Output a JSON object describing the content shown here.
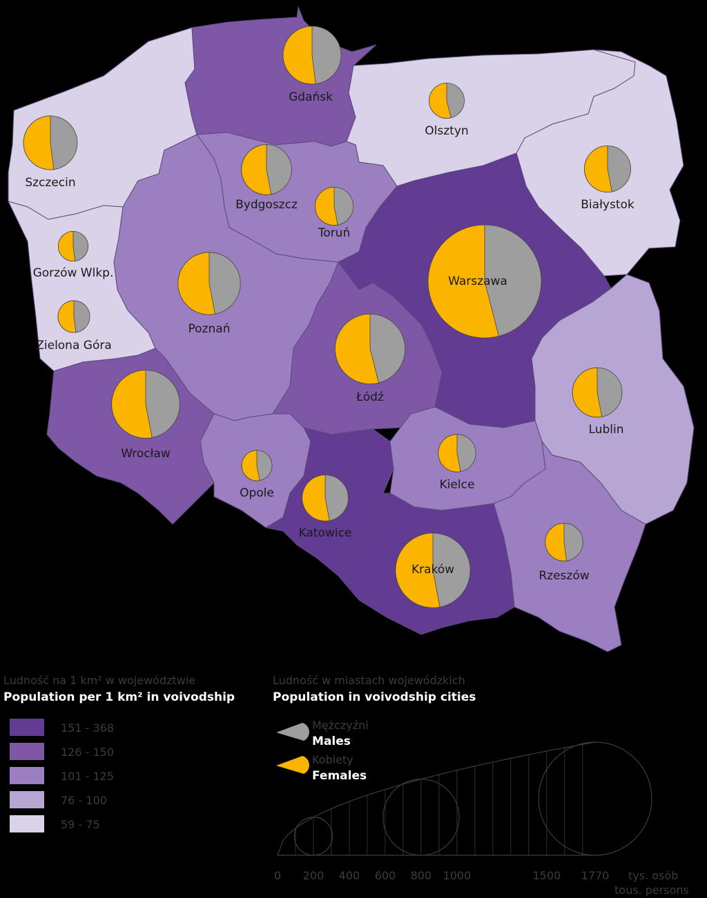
{
  "colors": {
    "c1": "#623b92",
    "c2": "#7e57a7",
    "c3": "#9b7fc0",
    "c4": "#b7a5d4",
    "c5": "#dad2e9",
    "males": "#9e9e9e",
    "females": "#fbb500"
  },
  "cities": [
    {
      "name": "Gdańsk",
      "size": 465,
      "female_share": 0.52
    },
    {
      "name": "Olsztyn",
      "size": 171,
      "female_share": 0.54
    },
    {
      "name": "Szczecin",
      "size": 400,
      "female_share": 0.52
    },
    {
      "name": "Bydgoszcz",
      "size": 348,
      "female_share": 0.53
    },
    {
      "name": "Toruń",
      "size": 201,
      "female_share": 0.53
    },
    {
      "name": "Białystok",
      "size": 297,
      "female_share": 0.53
    },
    {
      "name": "Gorzów Wlkp.",
      "size": 123,
      "female_share": 0.52
    },
    {
      "name": "Warszawa",
      "size": 1770,
      "female_share": 0.54
    },
    {
      "name": "Poznań",
      "size": 538,
      "female_share": 0.53
    },
    {
      "name": "Zielona Góra",
      "size": 140,
      "female_share": 0.52
    },
    {
      "name": "Łódź",
      "size": 677,
      "female_share": 0.54
    },
    {
      "name": "Wrocław",
      "size": 641,
      "female_share": 0.53
    },
    {
      "name": "Lublin",
      "size": 339,
      "female_share": 0.53
    },
    {
      "name": "Opole",
      "size": 127,
      "female_share": 0.53
    },
    {
      "name": "Kielce",
      "size": 195,
      "female_share": 0.53
    },
    {
      "name": "Katowice",
      "size": 294,
      "female_share": 0.53
    },
    {
      "name": "Kraków",
      "size": 771,
      "female_share": 0.53
    },
    {
      "name": "Rzeszów",
      "size": 196,
      "female_share": 0.52
    }
  ],
  "legend_density": {
    "title_pl": "Ludność na 1 km² w województwie",
    "title_en": "Population per 1 km² in voivodship",
    "classes": [
      {
        "range": "151 - 368",
        "color": "#623b92"
      },
      {
        "range": "126 - 150",
        "color": "#7e57a7"
      },
      {
        "range": "101 -  125",
        "color": "#9b7fc0"
      },
      {
        "range": "76 - 100",
        "color": "#b7a5d4"
      },
      {
        "range": "59 -   75",
        "color": "#dad2e9"
      }
    ]
  },
  "legend_cities": {
    "title_pl": "Ludność w miastach wojewódzkich",
    "title_en": "Population in voivodship cities",
    "males_pl": "Mężczyźni",
    "males_en": "Males",
    "females_pl": "Kobiety",
    "females_en": "Females",
    "scale_ticks": [
      "0",
      "200",
      "400",
      "600",
      "800",
      "1000",
      "1500",
      "1770"
    ],
    "scale_values": [
      0,
      200,
      400,
      600,
      800,
      1000,
      1500,
      1770
    ],
    "scale_unit_pl": "tys. osób",
    "scale_unit_en": "tous. persons"
  }
}
